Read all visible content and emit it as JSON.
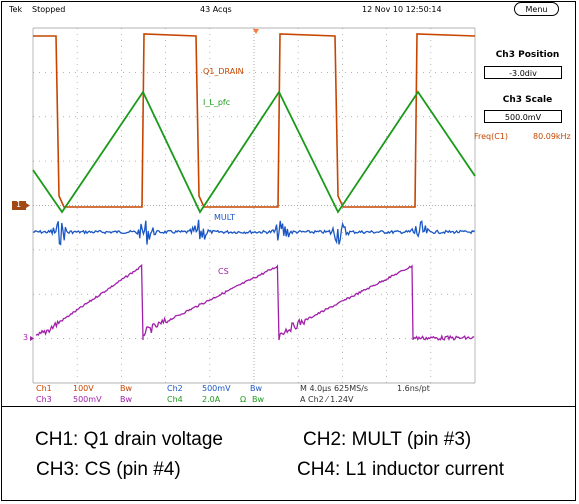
{
  "header": {
    "brand": "Tek",
    "state": "Stopped",
    "acqs": "43 Acqs",
    "timestamp": "12 Nov 10 12:50:14"
  },
  "side_panel": {
    "menu_label": "Menu",
    "position_title": "Ch3 Position",
    "position_value": "-3.0div",
    "scale_title": "Ch3 Scale",
    "scale_value": "500.0mV",
    "freq_label": "Freq(C1)",
    "freq_value": "80.09kHz"
  },
  "waveform_labels": {
    "ch1": "Q1_DRAIN",
    "ch4": "I_L_pfc",
    "ch2": "MULT",
    "ch3": "CS"
  },
  "markers": {
    "ch1": "1",
    "ch3": "3"
  },
  "status": {
    "ch1_label": "Ch1",
    "ch1_scale": "100V",
    "ch3_label": "Ch3",
    "ch3_scale": "500mV",
    "bw": "Bw",
    "ch2_label": "Ch2",
    "ch2_scale": "500mV",
    "ch4_label": "Ch4",
    "ch4_scale": "2.0A",
    "ohm": "Ω",
    "timebase": "M 4.0µs 625MS/s",
    "pt": "1.6ns/pt",
    "trigger": "A  Ch2  ⁄  1.24V"
  },
  "captions": {
    "ch1": "CH1: Q1 drain voltage",
    "ch2": "CH2: MULT (pin #3)",
    "ch3": "CH3: CS (pin #4)",
    "ch4": "CH4: L1 inductor current"
  },
  "colors": {
    "ch1": "#c64600",
    "ch2": "#1a56c4",
    "ch3": "#a020a8",
    "ch4": "#1a9a1a",
    "grid": "#9a9a9a"
  }
}
